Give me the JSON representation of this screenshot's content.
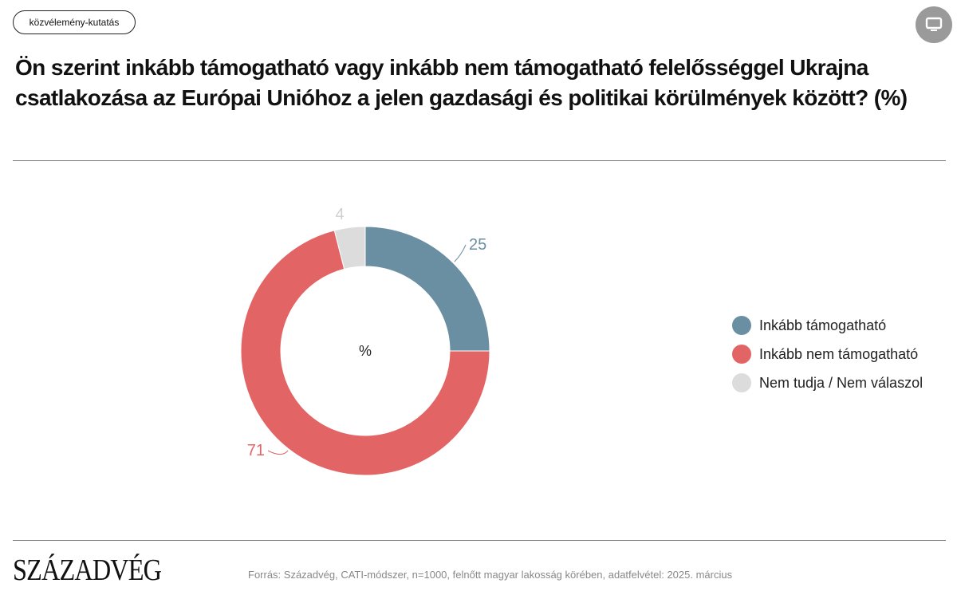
{
  "tag": "közvélemény-kutatás",
  "share_icon": "monitor-icon",
  "title": "Ön szerint inkább támogatható vagy inkább nem támogatható felelősséggel Ukrajna csatlakozása az Európai Unióhoz a jelen gazdasági és politikai körülmények között? (%)",
  "chart_data": {
    "type": "pie",
    "variant": "donut",
    "center_label": "%",
    "categories": [
      "Inkább támogatható",
      "Inkább nem támogatható",
      "Nem tudja / Nem válaszol"
    ],
    "values": [
      25,
      71,
      4
    ],
    "value_labels": [
      "25",
      "71",
      "4"
    ],
    "colors": [
      "#6a8fa3",
      "#e36464",
      "#dcdcdc"
    ],
    "legend_position": "right"
  },
  "footer": {
    "logo": "SZÁZADVÉG",
    "source": "Forrás: Századvég, CATI-módszer, n=1000, felnőtt magyar lakosság körében, adatfelvétel: 2025. március"
  }
}
